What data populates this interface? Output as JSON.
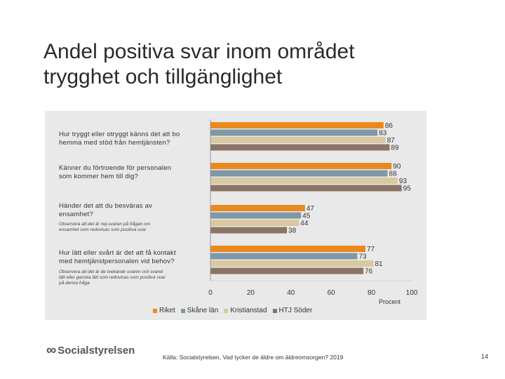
{
  "title_lines": [
    "Andel positiva svar inom området",
    "trygghet och tillgänglighet"
  ],
  "questions": [
    {
      "lines": [
        "Hur tryggt eller otryggt känns det att bo",
        "hemma med stöd från hemtjänsten?"
      ],
      "note": []
    },
    {
      "lines": [
        "Känner du förtroende för personalen",
        "som kommer hem till dig?"
      ],
      "note": []
    },
    {
      "lines": [
        "Händer det att du besväras av",
        "ensamhet?"
      ],
      "note": [
        "Observera att det är nej-svaren på frågan om",
        "ensamhet som redovisas som positiva svar"
      ]
    },
    {
      "lines": [
        "Hur lätt eller svårt är det att få kontakt",
        "med hemtjänstpersonalen vid behov?"
      ],
      "note": [
        "Observera att det är de tvekande svaren och svaret",
        "lätt eller ganska lätt som redovisas som positiva svar",
        "på denna fråga"
      ]
    }
  ],
  "chart_data": {
    "type": "bar",
    "orientation": "horizontal",
    "categories": [
      "Hur tryggt eller otryggt känns det att bo hemma med stöd från hemtjänsten?",
      "Känner du förtroende för personalen som kommer hem till dig?",
      "Händer det att du besväras av ensamhet?",
      "Hur lätt eller svårt är det att få kontakt med hemtjänstpersonalen vid behov?"
    ],
    "series": [
      {
        "name": "Riket",
        "color": "#ea8a1e",
        "values": [
          86,
          90,
          47,
          77
        ]
      },
      {
        "name": "Skåne län",
        "color": "#7f98a8",
        "values": [
          83,
          88,
          45,
          73
        ]
      },
      {
        "name": "Kristianstad",
        "color": "#d9c8a0",
        "values": [
          87,
          93,
          44,
          81
        ]
      },
      {
        "name": "HTJ Söder",
        "color": "#8a7463",
        "values": [
          89,
          95,
          38,
          76
        ]
      }
    ],
    "xlim": [
      0,
      100
    ],
    "xticks": [
      "0",
      "20",
      "40",
      "60",
      "80",
      "100"
    ],
    "xlabel": "Procent",
    "legend_position": "bottom"
  },
  "source": "Källa: Socialstyrelsen, Vad tycker de äldre om äldreomsorgen? 2019",
  "page_number": "14",
  "logo_text": "Socialstyrelsen"
}
